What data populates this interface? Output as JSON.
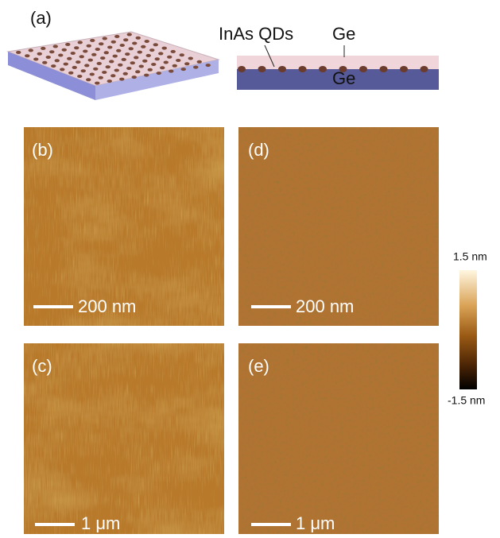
{
  "schematic": {
    "label": "(a)",
    "qd_label": "InAs QDs",
    "cap_label": "Ge",
    "substrate_label": "Ge"
  },
  "afm_images": [
    {
      "label": "(b)",
      "scale_bar": "200 nm"
    },
    {
      "label": "(d)",
      "scale_bar": "200 nm"
    },
    {
      "label": "(c)",
      "scale_bar": "1 μm"
    },
    {
      "label": "(e)",
      "scale_bar": "1 μm"
    }
  ],
  "colorbar": {
    "max_label": "1.5 nm",
    "min_label": "-1.5 nm"
  }
}
